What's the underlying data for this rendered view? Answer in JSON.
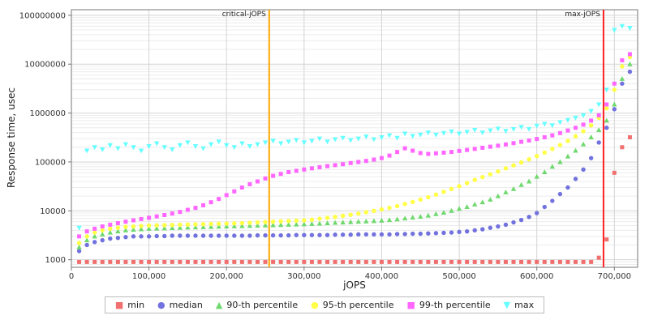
{
  "chart_data": {
    "type": "scatter",
    "title": "",
    "xlabel": "jOPS",
    "ylabel": "Response time, usec",
    "xlim": [
      0,
      730000
    ],
    "ylim": [
      700,
      130000000
    ],
    "y_scale": "log",
    "grid": true,
    "legend_position": "bottom",
    "x_ticks": [
      0,
      100000,
      200000,
      300000,
      400000,
      500000,
      600000,
      700000
    ],
    "x_tick_labels": [
      "0",
      "100,000",
      "200,000",
      "300,000",
      "400,000",
      "500,000",
      "600,000",
      "700,000"
    ],
    "y_ticks": [
      1000,
      10000,
      100000,
      1000000,
      10000000,
      100000000
    ],
    "y_tick_labels": [
      "1000",
      "10000",
      "100000",
      "1000000",
      "10000000",
      "100000000"
    ],
    "annotations": [
      {
        "label": "critical-jOPS",
        "x": 255000,
        "color": "#ffaa00"
      },
      {
        "label": "max-jOPS",
        "x": 686000,
        "color": "#ff2020"
      }
    ],
    "x": [
      10000,
      20000,
      30000,
      40000,
      50000,
      60000,
      70000,
      80000,
      90000,
      100000,
      110000,
      120000,
      130000,
      140000,
      150000,
      160000,
      170000,
      180000,
      190000,
      200000,
      210000,
      220000,
      230000,
      240000,
      250000,
      260000,
      270000,
      280000,
      290000,
      300000,
      310000,
      320000,
      330000,
      340000,
      350000,
      360000,
      370000,
      380000,
      390000,
      400000,
      410000,
      420000,
      430000,
      440000,
      450000,
      460000,
      470000,
      480000,
      490000,
      500000,
      510000,
      520000,
      530000,
      540000,
      550000,
      560000,
      570000,
      580000,
      590000,
      600000,
      610000,
      620000,
      630000,
      640000,
      650000,
      660000,
      670000,
      680000,
      690000,
      700000,
      710000,
      720000
    ],
    "series": [
      {
        "name": "min",
        "marker": "square",
        "color": "#f07070",
        "values": [
          900,
          900,
          900,
          900,
          900,
          900,
          900,
          900,
          900,
          900,
          900,
          900,
          900,
          900,
          900,
          900,
          900,
          900,
          900,
          900,
          900,
          900,
          900,
          900,
          900,
          900,
          900,
          900,
          900,
          900,
          900,
          900,
          900,
          900,
          900,
          900,
          900,
          900,
          900,
          900,
          900,
          900,
          900,
          900,
          900,
          900,
          900,
          900,
          900,
          900,
          900,
          900,
          900,
          900,
          900,
          900,
          900,
          900,
          900,
          900,
          900,
          900,
          900,
          900,
          900,
          900,
          900,
          1100,
          2600,
          60000,
          200000,
          320000
        ]
      },
      {
        "name": "median",
        "marker": "circle",
        "color": "#7272de",
        "values": [
          1500,
          2000,
          2300,
          2500,
          2700,
          2800,
          2900,
          3000,
          3000,
          3000,
          3050,
          3050,
          3100,
          3100,
          3100,
          3100,
          3100,
          3100,
          3100,
          3100,
          3100,
          3100,
          3100,
          3150,
          3150,
          3150,
          3150,
          3150,
          3200,
          3200,
          3200,
          3200,
          3200,
          3250,
          3250,
          3250,
          3300,
          3300,
          3300,
          3300,
          3300,
          3350,
          3350,
          3400,
          3400,
          3450,
          3500,
          3550,
          3600,
          3700,
          3800,
          4000,
          4200,
          4500,
          4800,
          5200,
          5800,
          6500,
          7500,
          9000,
          12000,
          16000,
          22000,
          30000,
          45000,
          70000,
          120000,
          250000,
          500000,
          1200000,
          4000000,
          7000000
        ]
      },
      {
        "name": "90-th percentile",
        "marker": "triangle-up",
        "color": "#6fd96f",
        "values": [
          1800,
          2500,
          3000,
          3300,
          3600,
          3800,
          4000,
          4100,
          4200,
          4300,
          4350,
          4400,
          4450,
          4500,
          4550,
          4600,
          4650,
          4700,
          4750,
          4800,
          4850,
          4900,
          4950,
          5000,
          5050,
          5100,
          5150,
          5200,
          5250,
          5300,
          5400,
          5500,
          5600,
          5700,
          5800,
          5900,
          6000,
          6100,
          6200,
          6300,
          6500,
          6700,
          7000,
          7300,
          7600,
          8000,
          8600,
          9200,
          10000,
          11000,
          12000,
          13500,
          15000,
          17000,
          20000,
          24000,
          28000,
          34000,
          40000,
          50000,
          62000,
          80000,
          100000,
          130000,
          170000,
          230000,
          320000,
          450000,
          700000,
          1500000,
          5000000,
          10000000
        ]
      },
      {
        "name": "95-th percentile",
        "marker": "circle",
        "color": "#ffff45",
        "values": [
          2200,
          3000,
          3600,
          4000,
          4300,
          4500,
          4700,
          4800,
          4900,
          5000,
          5050,
          5100,
          5150,
          5200,
          5250,
          5300,
          5350,
          5400,
          5450,
          5500,
          5550,
          5600,
          5700,
          5800,
          5900,
          6000,
          6100,
          6200,
          6300,
          6400,
          6600,
          6900,
          7200,
          7500,
          7900,
          8300,
          8800,
          9400,
          10000,
          10700,
          11500,
          12500,
          13800,
          15200,
          17000,
          19000,
          21500,
          24500,
          28000,
          32000,
          37000,
          43000,
          49000,
          56000,
          64000,
          74000,
          85000,
          98000,
          113000,
          132000,
          156000,
          185000,
          222000,
          270000,
          335000,
          425000,
          560000,
          800000,
          1250000,
          3000000,
          9000000,
          14000000
        ]
      },
      {
        "name": "99-th percentile",
        "marker": "square",
        "color": "#ff66ff",
        "values": [
          3000,
          3800,
          4300,
          4800,
          5200,
          5600,
          6000,
          6400,
          6800,
          7200,
          7700,
          8200,
          8800,
          9500,
          10500,
          11500,
          13000,
          15000,
          17500,
          21000,
          25000,
          30000,
          35000,
          40000,
          46000,
          52000,
          57000,
          62000,
          66000,
          70000,
          74000,
          78000,
          82000,
          86000,
          90000,
          95000,
          100000,
          105000,
          112000,
          120000,
          135000,
          160000,
          190000,
          170000,
          152000,
          146000,
          150000,
          155000,
          160000,
          168000,
          176000,
          185000,
          195000,
          205000,
          215000,
          228000,
          242000,
          258000,
          275000,
          295000,
          320000,
          350000,
          390000,
          440000,
          500000,
          580000,
          700000,
          900000,
          1500000,
          4000000,
          12000000,
          16000000
        ]
      },
      {
        "name": "max",
        "marker": "triangle-down",
        "color": "#66ffff",
        "values": [
          4500,
          170000,
          200000,
          180000,
          220000,
          190000,
          230000,
          200000,
          170000,
          210000,
          240000,
          200000,
          180000,
          220000,
          250000,
          210000,
          190000,
          230000,
          260000,
          220000,
          200000,
          240000,
          210000,
          230000,
          250000,
          270000,
          240000,
          260000,
          280000,
          250000,
          270000,
          300000,
          260000,
          290000,
          310000,
          280000,
          300000,
          330000,
          290000,
          320000,
          350000,
          310000,
          380000,
          340000,
          360000,
          400000,
          360000,
          390000,
          420000,
          380000,
          410000,
          450000,
          400000,
          440000,
          480000,
          430000,
          470000,
          520000,
          470000,
          550000,
          600000,
          560000,
          650000,
          720000,
          800000,
          900000,
          1100000,
          1500000,
          3000000,
          50000000,
          60000000,
          55000000
        ]
      }
    ]
  }
}
